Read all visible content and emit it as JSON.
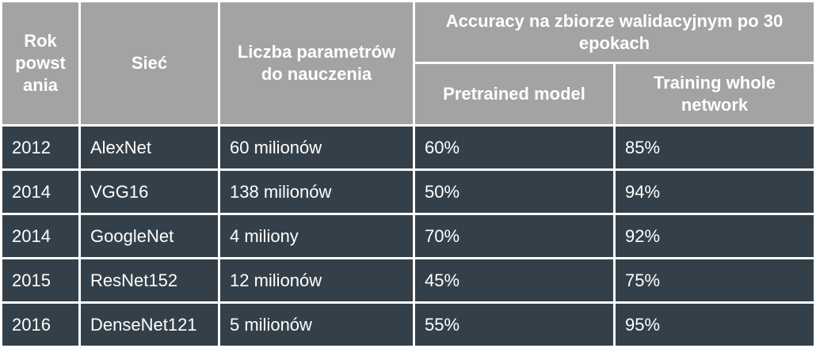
{
  "table": {
    "headers": {
      "year": "Rok powst ania",
      "network": "Sieć",
      "params": "Liczba parametrów do nauczenia",
      "accuracy_group": "Accuracy na zbiorze walidacyjnym po 30 epokach",
      "pretrained": "Pretrained model",
      "whole": "Training whole network"
    },
    "rows": [
      {
        "year": "2012",
        "network": "AlexNet",
        "params": "60 milionów",
        "pretrained": "60%",
        "whole": "85%"
      },
      {
        "year": "2014",
        "network": "VGG16",
        "params": "138 milionów",
        "pretrained": "50%",
        "whole": "94%"
      },
      {
        "year": "2014",
        "network": "GoogleNet",
        "params": "4 miliony",
        "pretrained": "70%",
        "whole": "92%"
      },
      {
        "year": "2015",
        "network": "ResNet152",
        "params": "12 milionów",
        "pretrained": "45%",
        "whole": "75%"
      },
      {
        "year": "2016",
        "network": "DenseNet121",
        "params": "5 milionów",
        "pretrained": "55%",
        "whole": "95%"
      }
    ]
  },
  "colors": {
    "header_bg": "#a3a3a3",
    "body_bg": "#344049",
    "border": "#ffffff",
    "text": "#ffffff"
  }
}
